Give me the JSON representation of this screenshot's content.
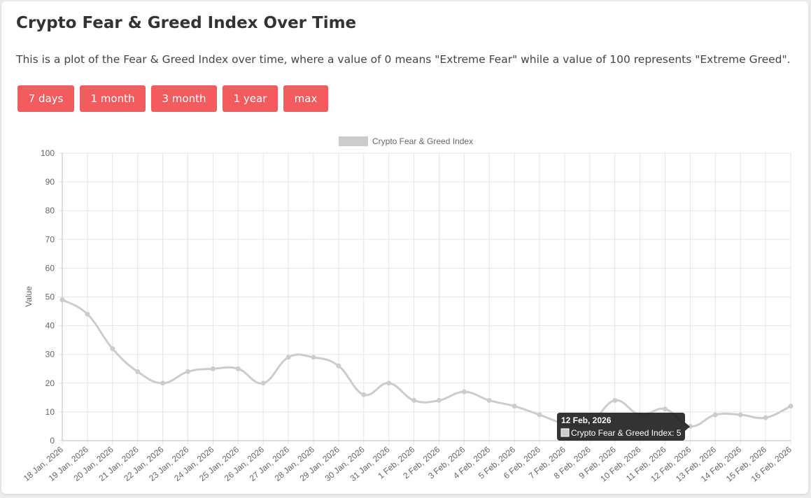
{
  "page": {
    "title": "Crypto Fear & Greed Index Over Time",
    "description": "This is a plot of the Fear & Greed Index over time, where a value of 0 means \"Extreme Fear\" while a value of 100 represents \"Extreme Greed\"."
  },
  "range_buttons": [
    {
      "label": "7 days"
    },
    {
      "label": "1 month"
    },
    {
      "label": "3 month"
    },
    {
      "label": "1 year"
    },
    {
      "label": "max"
    }
  ],
  "colors": {
    "button": "#f25c5f",
    "series": "#cccccc",
    "grid": "#e5e5e5",
    "tooltip_bg": "#222222"
  },
  "tooltip": {
    "title": "12 Feb, 2026",
    "body": "Crypto Fear & Greed Index: 5"
  },
  "chart_data": {
    "type": "line",
    "title": "",
    "xlabel": "",
    "ylabel": "Value",
    "ylim": [
      0,
      100
    ],
    "yticks": [
      0,
      10,
      20,
      30,
      40,
      50,
      60,
      70,
      80,
      90,
      100
    ],
    "grid": true,
    "legend_position": "top-center",
    "categories": [
      "18 Jan, 2026",
      "19 Jan, 2026",
      "20 Jan, 2026",
      "21 Jan, 2026",
      "22 Jan, 2026",
      "23 Jan, 2026",
      "24 Jan, 2026",
      "25 Jan, 2026",
      "26 Jan, 2026",
      "27 Jan, 2026",
      "28 Jan, 2026",
      "29 Jan, 2026",
      "30 Jan, 2026",
      "31 Jan, 2026",
      "1 Feb, 2026",
      "2 Feb, 2026",
      "3 Feb, 2026",
      "4 Feb, 2026",
      "5 Feb, 2026",
      "6 Feb, 2026",
      "7 Feb, 2026",
      "8 Feb, 2026",
      "9 Feb, 2026",
      "10 Feb, 2026",
      "11 Feb, 2026",
      "12 Feb, 2026",
      "13 Feb, 2026",
      "14 Feb, 2026",
      "15 Feb, 2026",
      "16 Feb, 2026"
    ],
    "series": [
      {
        "name": "Crypto Fear & Greed Index",
        "values": [
          49,
          44,
          32,
          24,
          20,
          24,
          25,
          25,
          20,
          29,
          29,
          26,
          16,
          20,
          14,
          14,
          17,
          14,
          12,
          9,
          6,
          6,
          14,
          9,
          11,
          5,
          9,
          9,
          8,
          12
        ]
      }
    ]
  }
}
